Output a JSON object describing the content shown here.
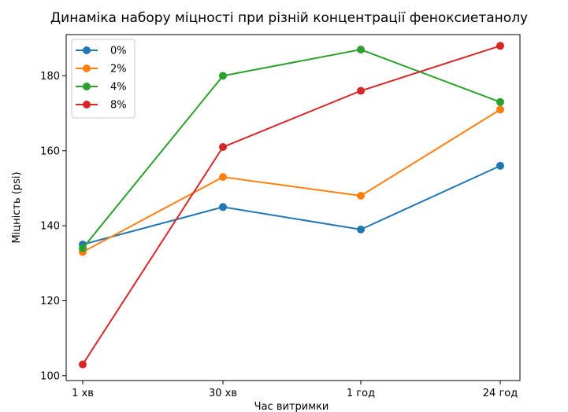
{
  "chart_data": {
    "type": "line",
    "title": "Динаміка набору міцності при різній концентрації феноксиетанолу",
    "xlabel": "Час витримки",
    "ylabel": "Міцність (psi)",
    "categories": [
      "1 хв",
      "30 хв",
      "1 год",
      "24 год"
    ],
    "yticks": [
      100,
      120,
      140,
      160,
      180
    ],
    "ylim": [
      98.7,
      191
    ],
    "grid": false,
    "legend_position": "top-left",
    "series": [
      {
        "name": "0%",
        "color": "#1f77b4",
        "values": [
          135,
          145,
          139,
          156
        ]
      },
      {
        "name": "2%",
        "color": "#ff7f0e",
        "values": [
          133,
          153,
          148,
          171
        ]
      },
      {
        "name": "4%",
        "color": "#2ca02c",
        "values": [
          134,
          180,
          187,
          173
        ]
      },
      {
        "name": "8%",
        "color": "#d62728",
        "values": [
          103,
          161,
          176,
          188
        ]
      }
    ]
  }
}
